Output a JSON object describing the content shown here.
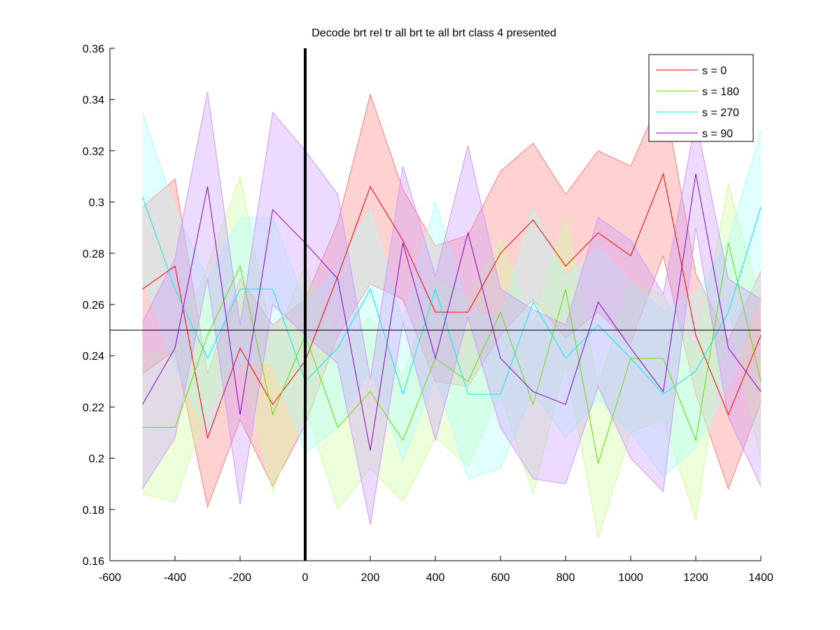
{
  "chart_data": {
    "type": "line",
    "title": "Decode brt rel tr all brt te all brt class 4 presented",
    "xlabel": "",
    "ylabel": "",
    "xlim": [
      -600,
      1400
    ],
    "ylim": [
      0.16,
      0.36
    ],
    "xticks": [
      -600,
      -400,
      -200,
      0,
      200,
      400,
      600,
      800,
      1000,
      1200,
      1400
    ],
    "xtick_labels": [
      "-600",
      "-400",
      "-200",
      "0",
      "200",
      "400",
      "600",
      "800",
      "1000",
      "1200",
      "1400"
    ],
    "yticks": [
      0.16,
      0.18,
      0.2,
      0.22,
      0.24,
      0.26,
      0.28,
      0.3,
      0.32,
      0.34,
      0.36
    ],
    "ytick_labels": [
      "0.16",
      "0.18",
      "0.2",
      "0.22",
      "0.24",
      "0.26",
      "0.28",
      "0.3",
      "0.32",
      "0.34",
      "0.36"
    ],
    "chance_level": 0.25,
    "stimulus_onset": 0,
    "legend_position": "top-right",
    "grid": false,
    "x": [
      -500,
      -400,
      -300,
      -200,
      -100,
      0,
      100,
      200,
      300,
      400,
      500,
      600,
      700,
      800,
      900,
      1000,
      1100,
      1200,
      1300,
      1400
    ],
    "series": [
      {
        "name": "s = 0",
        "color": "#ff0000",
        "band_color": "#ff7f7f",
        "values": [
          0.266,
          0.275,
          0.208,
          0.243,
          0.221,
          0.238,
          0.271,
          0.306,
          0.285,
          0.257,
          0.257,
          0.28,
          0.293,
          0.275,
          0.288,
          0.279,
          0.311,
          0.248,
          0.217,
          0.248
        ],
        "upper": [
          0.298,
          0.309,
          0.233,
          0.27,
          0.252,
          0.262,
          0.292,
          0.342,
          0.305,
          0.283,
          0.287,
          0.312,
          0.323,
          0.303,
          0.32,
          0.314,
          0.343,
          0.272,
          0.246,
          0.273
        ],
        "lower": [
          0.233,
          0.242,
          0.181,
          0.215,
          0.189,
          0.213,
          0.248,
          0.268,
          0.262,
          0.23,
          0.228,
          0.248,
          0.262,
          0.247,
          0.257,
          0.245,
          0.279,
          0.225,
          0.188,
          0.222
        ]
      },
      {
        "name": "s = 180",
        "color": "#66dd00",
        "band_color": "#ccff99",
        "values": [
          0.212,
          0.212,
          0.248,
          0.275,
          0.217,
          0.248,
          0.212,
          0.226,
          0.207,
          0.239,
          0.23,
          0.257,
          0.221,
          0.266,
          0.198,
          0.239,
          0.239,
          0.207,
          0.284,
          0.23
        ],
        "upper": [
          0.24,
          0.243,
          0.275,
          0.31,
          0.245,
          0.275,
          0.243,
          0.255,
          0.232,
          0.27,
          0.262,
          0.285,
          0.252,
          0.294,
          0.228,
          0.268,
          0.264,
          0.24,
          0.307,
          0.26
        ],
        "lower": [
          0.186,
          0.183,
          0.22,
          0.24,
          0.187,
          0.22,
          0.18,
          0.196,
          0.183,
          0.208,
          0.197,
          0.225,
          0.186,
          0.237,
          0.169,
          0.21,
          0.215,
          0.176,
          0.259,
          0.199
        ]
      },
      {
        "name": "s = 270",
        "color": "#00eeee",
        "band_color": "#aaffff",
        "values": [
          0.302,
          0.266,
          0.239,
          0.266,
          0.266,
          0.23,
          0.243,
          0.266,
          0.225,
          0.266,
          0.225,
          0.225,
          0.261,
          0.239,
          0.252,
          0.239,
          0.225,
          0.234,
          0.257,
          0.298
        ],
        "upper": [
          0.335,
          0.297,
          0.27,
          0.294,
          0.294,
          0.26,
          0.275,
          0.297,
          0.253,
          0.3,
          0.258,
          0.254,
          0.297,
          0.27,
          0.282,
          0.268,
          0.258,
          0.264,
          0.285,
          0.328
        ],
        "lower": [
          0.271,
          0.236,
          0.21,
          0.238,
          0.237,
          0.202,
          0.212,
          0.235,
          0.199,
          0.232,
          0.192,
          0.196,
          0.226,
          0.208,
          0.223,
          0.21,
          0.193,
          0.204,
          0.228,
          0.267
        ]
      },
      {
        "name": "s = 90",
        "color": "#8800cc",
        "band_color": "#cc99ff",
        "values": [
          0.221,
          0.243,
          0.306,
          0.217,
          0.297,
          0.284,
          0.27,
          0.203,
          0.284,
          0.239,
          0.288,
          0.239,
          0.226,
          0.221,
          0.261,
          0.243,
          0.226,
          0.311,
          0.243,
          0.226
        ],
        "upper": [
          0.253,
          0.278,
          0.343,
          0.252,
          0.335,
          0.32,
          0.303,
          0.231,
          0.314,
          0.271,
          0.322,
          0.266,
          0.258,
          0.252,
          0.294,
          0.285,
          0.264,
          0.332,
          0.27,
          0.262
        ],
        "lower": [
          0.188,
          0.208,
          0.27,
          0.182,
          0.26,
          0.248,
          0.237,
          0.174,
          0.253,
          0.207,
          0.255,
          0.212,
          0.192,
          0.19,
          0.228,
          0.2,
          0.187,
          0.29,
          0.216,
          0.189
        ]
      }
    ]
  }
}
